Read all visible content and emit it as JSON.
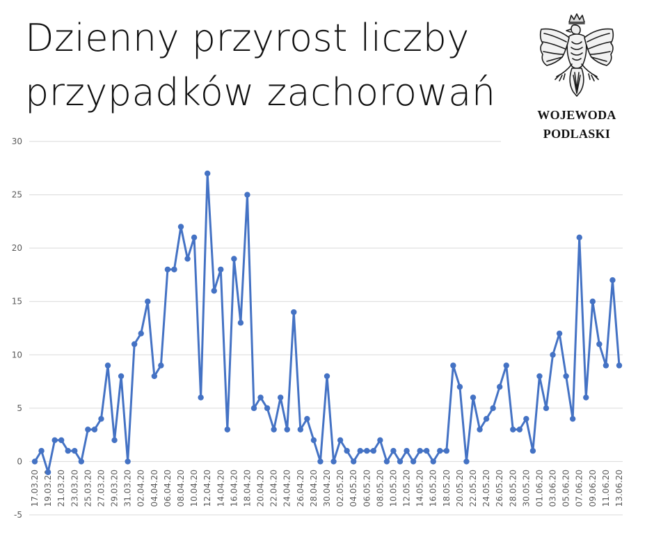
{
  "header": {
    "title_line1": "Dzienny przyrost liczby",
    "title_line2": "przypadków zachorowań"
  },
  "logo": {
    "line1": "WOJEWODA",
    "line2": "PODLASKI",
    "icon": "polish-eagle-emblem"
  },
  "colors": {
    "line": "#4472c4",
    "grid": "#d9d9d9",
    "tick_text": "#595959"
  },
  "chart_data": {
    "type": "line",
    "title": "Dzienny przyrost liczby przypadków zachorowań",
    "xlabel": "",
    "ylabel": "",
    "ylim": [
      -5,
      30
    ],
    "yticks": [
      -5,
      0,
      5,
      10,
      15,
      20,
      25,
      30
    ],
    "grid": true,
    "x": [
      "17.03.20",
      "18.03.20",
      "19.03.20",
      "20.03.20",
      "21.03.20",
      "22.03.20",
      "23.03.20",
      "24.03.20",
      "25.03.20",
      "26.03.20",
      "27.03.20",
      "28.03.20",
      "29.03.20",
      "30.03.20",
      "31.03.20",
      "01.04.20",
      "02.04.20",
      "03.04.20",
      "04.04.20",
      "05.04.20",
      "06.04.20",
      "07.04.20",
      "08.04.20",
      "09.04.20",
      "10.04.20",
      "11.04.20",
      "12.04.20",
      "13.04.20",
      "14.04.20",
      "15.04.20",
      "16.04.20",
      "17.04.20",
      "18.04.20",
      "19.04.20",
      "20.04.20",
      "21.04.20",
      "22.04.20",
      "23.04.20",
      "24.04.20",
      "25.04.20",
      "26.04.20",
      "27.04.20",
      "28.04.20",
      "29.04.20",
      "30.04.20",
      "01.05.20",
      "02.05.20",
      "03.05.20",
      "04.05.20",
      "05.05.20",
      "06.05.20",
      "07.05.20",
      "08.05.20",
      "09.05.20",
      "10.05.20",
      "11.05.20",
      "12.05.20",
      "13.05.20",
      "14.05.20",
      "15.05.20",
      "16.05.20",
      "17.05.20",
      "18.05.20",
      "19.05.20",
      "20.05.20",
      "21.05.20",
      "22.05.20",
      "23.05.20",
      "24.05.20",
      "25.05.20",
      "26.05.20",
      "27.05.20",
      "28.05.20",
      "29.05.20",
      "30.05.20",
      "31.05.20",
      "01.06.20",
      "02.06.20",
      "03.06.20",
      "04.06.20",
      "05.06.20",
      "06.06.20",
      "07.06.20",
      "08.06.20",
      "09.06.20",
      "10.06.20",
      "11.06.20",
      "12.06.20",
      "13.06.20"
    ],
    "x_tick_labels": [
      "17.03.20",
      "19.03.20",
      "21.03.20",
      "23.03.20",
      "25.03.20",
      "27.03.20",
      "29.03.20",
      "31.03.20",
      "02.04.20",
      "04.04.20",
      "06.04.20",
      "08.04.20",
      "10.04.20",
      "12.04.20",
      "14.04.20",
      "16.04.20",
      "18.04.20",
      "20.04.20",
      "22.04.20",
      "24.04.20",
      "26.04.20",
      "28.04.20",
      "30.04.20",
      "02.05.20",
      "04.05.20",
      "06.05.20",
      "08.05.20",
      "10.05.20",
      "12.05.20",
      "14.05.20",
      "16.05.20",
      "18.05.20",
      "20.05.20",
      "22.05.20",
      "24.05.20",
      "26.05.20",
      "28.05.20",
      "30.05.20",
      "01.06.20",
      "03.06.20",
      "05.06.20",
      "07.06.20",
      "09.06.20",
      "11.06.20",
      "13.06.20"
    ],
    "series": [
      {
        "values": [
          0,
          1,
          -1,
          2,
          2,
          1,
          1,
          0,
          3,
          3,
          4,
          9,
          2,
          8,
          0,
          11,
          12,
          15,
          8,
          9,
          18,
          18,
          22,
          19,
          21,
          6,
          27,
          16,
          18,
          3,
          19,
          13,
          25,
          5,
          6,
          5,
          3,
          6,
          3,
          14,
          3,
          4,
          2,
          0,
          8,
          0,
          2,
          1,
          0,
          1,
          1,
          1,
          2,
          0,
          1,
          0,
          1,
          0,
          1,
          1,
          0,
          1,
          1,
          9,
          7,
          0,
          6,
          3,
          4,
          5,
          7,
          9,
          3,
          3,
          4,
          1,
          8,
          5,
          10,
          12,
          8,
          4,
          21,
          6,
          15,
          11,
          9,
          17,
          9
        ]
      }
    ]
  }
}
